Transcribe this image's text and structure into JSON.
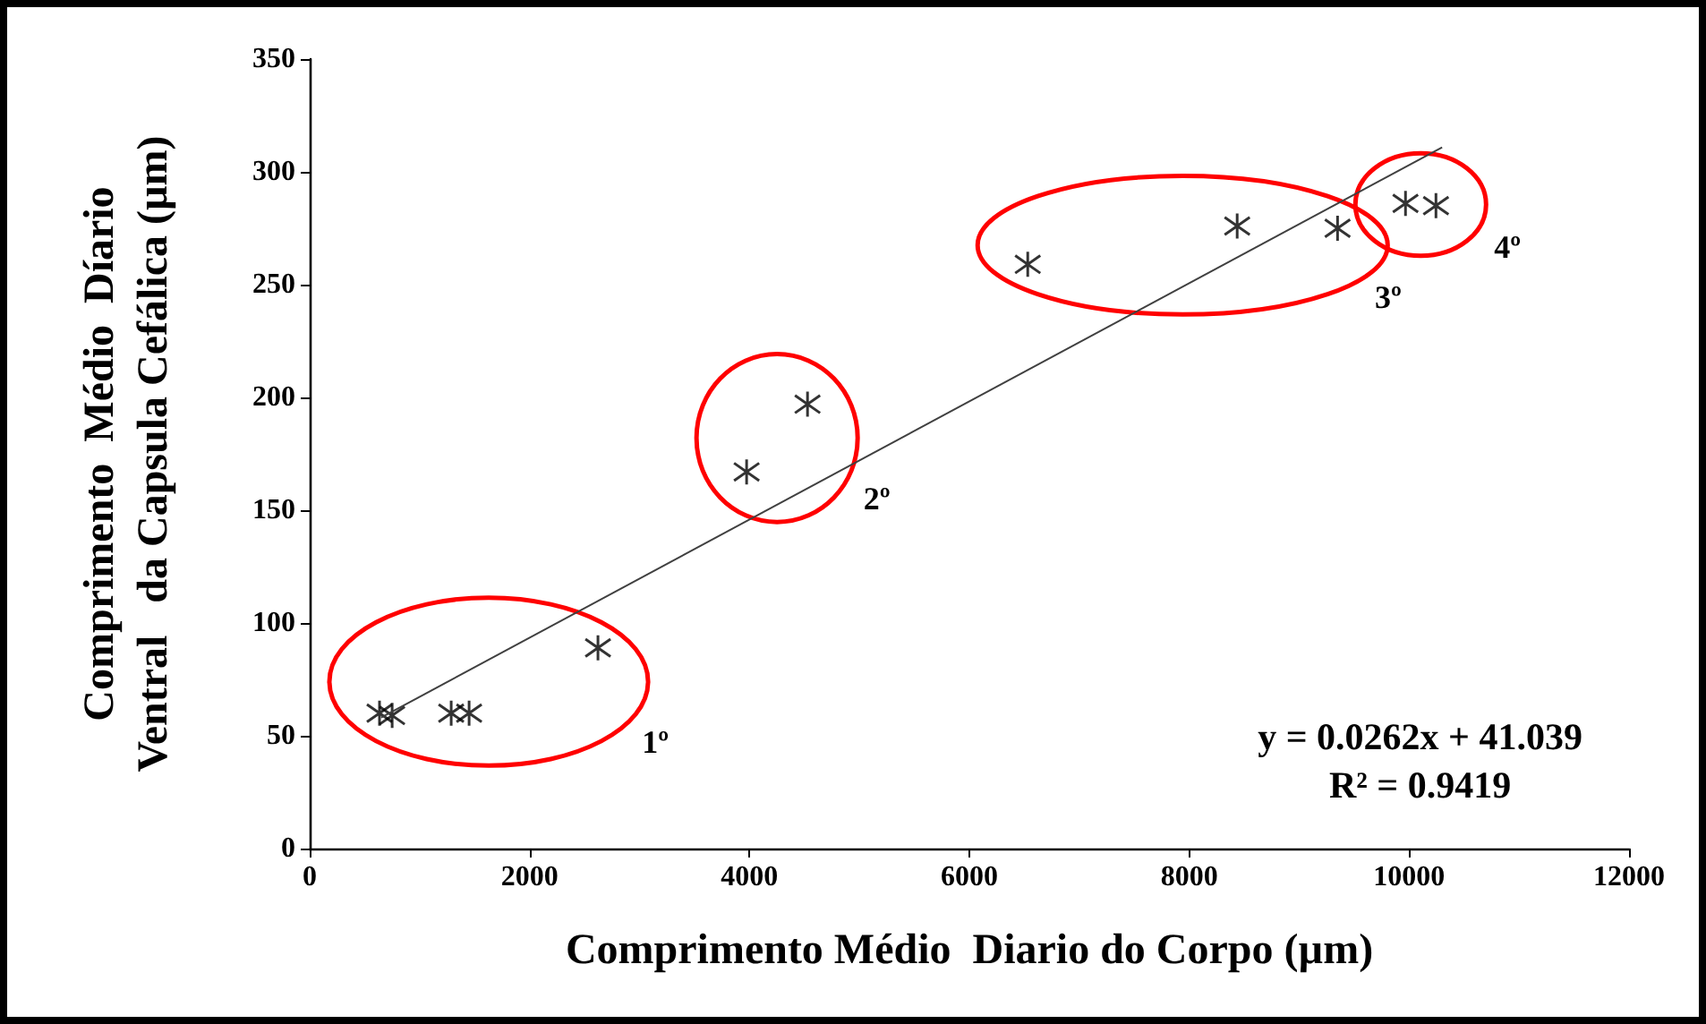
{
  "chart_data": {
    "type": "scatter",
    "xlabel": "Comprimento Médio  Diario do Corpo (µm)",
    "ylabel": "Comprimento  Médio  Díario\nVentral   da Capsula Cefálica (µm)",
    "xlim": [
      0,
      12000
    ],
    "xticks": [
      0,
      2000,
      4000,
      6000,
      8000,
      10000,
      12000
    ],
    "ylim": [
      0,
      350
    ],
    "yticks": [
      0,
      50,
      100,
      150,
      200,
      250,
      300,
      350
    ],
    "grid": false,
    "marker": "cross",
    "series": [
      {
        "color": "#000000",
        "x": [
          635,
          750,
          1287,
          1450,
          2622
        ],
        "values": [
          60,
          59,
          60,
          60,
          89
        ]
      },
      {
        "color": "#000000",
        "x": [
          3974,
          4528
        ],
        "values": [
          167,
          197
        ]
      },
      {
        "color": "#000000",
        "x": [
          6531,
          8436,
          9349
        ],
        "values": [
          259,
          276,
          275
        ]
      },
      {
        "color": "#000000",
        "x": [
          9967,
          10244
        ],
        "values": [
          286,
          285
        ]
      },
      {
        "type": "line",
        "color": "#404040",
        "x": [
          650,
          10300
        ],
        "values": [
          58.1,
          310.9
        ],
        "marker": "none",
        "line_style": "solid"
      }
    ],
    "annotations": [
      "1º",
      "2º",
      "3º",
      "4º",
      "y = 0.0262x + 41.039",
      "R² = 0.9419"
    ]
  }
}
